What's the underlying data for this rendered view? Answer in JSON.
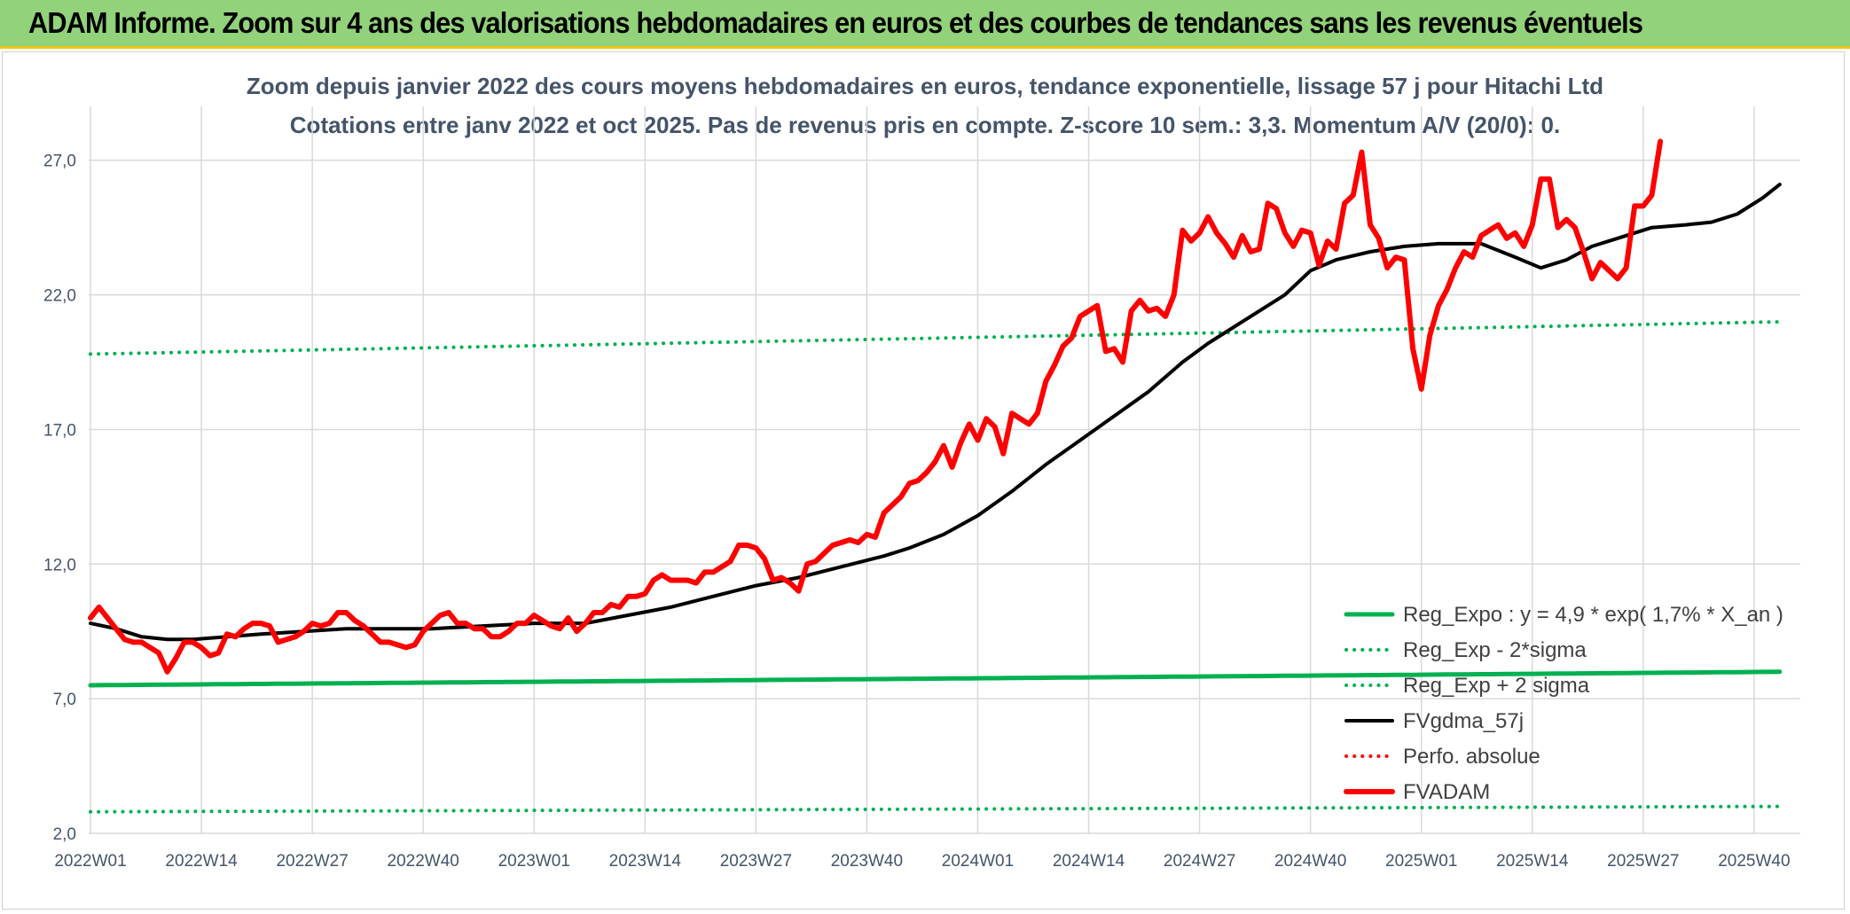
{
  "banner": {
    "title": "ADAM Informe. Zoom sur 4 ans des valorisations hebdomadaires en euros et des courbes de tendances sans les revenus éventuels"
  },
  "chart_data": {
    "type": "line",
    "title": "Zoom depuis janvier 2022 des cours moyens hebdomadaires en euros, tendance exponentielle, lissage 57 j pour Hitachi Ltd",
    "subtitle": "Cotations entre janv 2022 et oct 2025. Pas de revenus pris en compte. Z-score 10 sem.: 3,3. Momentum A/V (20/0): 0.",
    "xlabel": "",
    "ylabel": "",
    "ylim": [
      2.0,
      29.0
    ],
    "yticks": [
      "2,0",
      "7,0",
      "12,0",
      "17,0",
      "22,0",
      "27,0"
    ],
    "ytick_values": [
      2,
      7,
      12,
      17,
      22,
      27
    ],
    "xticks": [
      "2022W01",
      "2022W14",
      "2022W27",
      "2022W40",
      "2023W01",
      "2023W14",
      "2023W27",
      "2023W40",
      "2024W01",
      "2024W14",
      "2024W27",
      "2024W40",
      "2025W01",
      "2025W14",
      "2025W27",
      "2025W40"
    ],
    "xtick_index": [
      0,
      13,
      26,
      39,
      52,
      65,
      78,
      91,
      104,
      117,
      130,
      143,
      156,
      169,
      182,
      195
    ],
    "grid": true,
    "legend_position": "bottom-right",
    "series": [
      {
        "name": "Reg_Expo : y = 4,9 * exp( 1,7% *  X_an )",
        "color": "#00b050",
        "style": "solid",
        "width": 5,
        "start": 7.5,
        "end": 8.0
      },
      {
        "name": "Reg_Exp - 2*sigma",
        "color": "#00b050",
        "style": "dotted",
        "width": 4,
        "start": 2.8,
        "end": 3.0
      },
      {
        "name": "Reg_Exp + 2 sigma",
        "color": "#00b050",
        "style": "dotted",
        "width": 4,
        "start": 19.8,
        "end": 21.0
      },
      {
        "name": "FVgdma_57j",
        "color": "#000000",
        "style": "solid",
        "width": 4,
        "points": [
          [
            0,
            9.8
          ],
          [
            3,
            9.6
          ],
          [
            6,
            9.3
          ],
          [
            9,
            9.2
          ],
          [
            12,
            9.2
          ],
          [
            16,
            9.3
          ],
          [
            20,
            9.4
          ],
          [
            25,
            9.5
          ],
          [
            30,
            9.6
          ],
          [
            36,
            9.6
          ],
          [
            40,
            9.6
          ],
          [
            46,
            9.7
          ],
          [
            52,
            9.8
          ],
          [
            58,
            9.8
          ],
          [
            63,
            10.1
          ],
          [
            68,
            10.4
          ],
          [
            73,
            10.8
          ],
          [
            78,
            11.2
          ],
          [
            83,
            11.5
          ],
          [
            88,
            11.9
          ],
          [
            93,
            12.3
          ],
          [
            96,
            12.6
          ],
          [
            100,
            13.1
          ],
          [
            104,
            13.8
          ],
          [
            108,
            14.7
          ],
          [
            112,
            15.7
          ],
          [
            116,
            16.6
          ],
          [
            120,
            17.5
          ],
          [
            124,
            18.4
          ],
          [
            128,
            19.5
          ],
          [
            131,
            20.2
          ],
          [
            134,
            20.8
          ],
          [
            137,
            21.4
          ],
          [
            140,
            22.0
          ],
          [
            143,
            22.9
          ],
          [
            146,
            23.3
          ],
          [
            150,
            23.6
          ],
          [
            154,
            23.8
          ],
          [
            158,
            23.9
          ],
          [
            163,
            23.9
          ],
          [
            167,
            23.4
          ],
          [
            170,
            23.0
          ],
          [
            173,
            23.3
          ],
          [
            176,
            23.8
          ],
          [
            179,
            24.1
          ],
          [
            183,
            24.5
          ],
          [
            187,
            24.6
          ],
          [
            190,
            24.7
          ],
          [
            193,
            25.0
          ],
          [
            196,
            25.6
          ],
          [
            198,
            26.1
          ]
        ]
      },
      {
        "name": "Perfo. absolue",
        "color": "#ff0000",
        "style": "dotted",
        "width": 4,
        "points": []
      },
      {
        "name": "FVADAM",
        "color": "#ff0000",
        "style": "solid",
        "width": 6,
        "points": [
          [
            0,
            10.0
          ],
          [
            1,
            10.4
          ],
          [
            2,
            10.0
          ],
          [
            3,
            9.6
          ],
          [
            4,
            9.2
          ],
          [
            5,
            9.1
          ],
          [
            6,
            9.1
          ],
          [
            7,
            8.9
          ],
          [
            8,
            8.7
          ],
          [
            9,
            8.0
          ],
          [
            10,
            8.5
          ],
          [
            11,
            9.1
          ],
          [
            12,
            9.1
          ],
          [
            13,
            8.9
          ],
          [
            14,
            8.6
          ],
          [
            15,
            8.7
          ],
          [
            16,
            9.4
          ],
          [
            17,
            9.3
          ],
          [
            18,
            9.6
          ],
          [
            19,
            9.8
          ],
          [
            20,
            9.8
          ],
          [
            21,
            9.7
          ],
          [
            22,
            9.1
          ],
          [
            23,
            9.2
          ],
          [
            24,
            9.3
          ],
          [
            25,
            9.5
          ],
          [
            26,
            9.8
          ],
          [
            27,
            9.7
          ],
          [
            28,
            9.8
          ],
          [
            29,
            10.2
          ],
          [
            30,
            10.2
          ],
          [
            31,
            9.9
          ],
          [
            32,
            9.7
          ],
          [
            33,
            9.4
          ],
          [
            34,
            9.1
          ],
          [
            35,
            9.1
          ],
          [
            36,
            9.0
          ],
          [
            37,
            8.9
          ],
          [
            38,
            9.0
          ],
          [
            39,
            9.5
          ],
          [
            40,
            9.8
          ],
          [
            41,
            10.1
          ],
          [
            42,
            10.2
          ],
          [
            43,
            9.8
          ],
          [
            44,
            9.8
          ],
          [
            45,
            9.6
          ],
          [
            46,
            9.6
          ],
          [
            47,
            9.3
          ],
          [
            48,
            9.3
          ],
          [
            49,
            9.5
          ],
          [
            50,
            9.8
          ],
          [
            51,
            9.8
          ],
          [
            52,
            10.1
          ],
          [
            53,
            9.9
          ],
          [
            54,
            9.7
          ],
          [
            55,
            9.6
          ],
          [
            56,
            10.0
          ],
          [
            57,
            9.5
          ],
          [
            58,
            9.8
          ],
          [
            59,
            10.2
          ],
          [
            60,
            10.2
          ],
          [
            61,
            10.5
          ],
          [
            62,
            10.4
          ],
          [
            63,
            10.8
          ],
          [
            64,
            10.8
          ],
          [
            65,
            10.9
          ],
          [
            66,
            11.4
          ],
          [
            67,
            11.6
          ],
          [
            68,
            11.4
          ],
          [
            69,
            11.4
          ],
          [
            70,
            11.4
          ],
          [
            71,
            11.3
          ],
          [
            72,
            11.7
          ],
          [
            73,
            11.7
          ],
          [
            74,
            11.9
          ],
          [
            75,
            12.1
          ],
          [
            76,
            12.7
          ],
          [
            77,
            12.7
          ],
          [
            78,
            12.6
          ],
          [
            79,
            12.2
          ],
          [
            80,
            11.4
          ],
          [
            81,
            11.5
          ],
          [
            82,
            11.3
          ],
          [
            83,
            11.0
          ],
          [
            84,
            12.0
          ],
          [
            85,
            12.1
          ],
          [
            86,
            12.4
          ],
          [
            87,
            12.7
          ],
          [
            88,
            12.8
          ],
          [
            89,
            12.9
          ],
          [
            90,
            12.8
          ],
          [
            91,
            13.1
          ],
          [
            92,
            13.0
          ],
          [
            93,
            13.9
          ],
          [
            94,
            14.2
          ],
          [
            95,
            14.5
          ],
          [
            96,
            15.0
          ],
          [
            97,
            15.1
          ],
          [
            98,
            15.4
          ],
          [
            99,
            15.8
          ],
          [
            100,
            16.4
          ],
          [
            101,
            15.6
          ],
          [
            102,
            16.5
          ],
          [
            103,
            17.2
          ],
          [
            104,
            16.6
          ],
          [
            105,
            17.4
          ],
          [
            106,
            17.1
          ],
          [
            107,
            16.1
          ],
          [
            108,
            17.6
          ],
          [
            109,
            17.4
          ],
          [
            110,
            17.2
          ],
          [
            111,
            17.6
          ],
          [
            112,
            18.8
          ],
          [
            113,
            19.4
          ],
          [
            114,
            20.1
          ],
          [
            115,
            20.4
          ],
          [
            116,
            21.2
          ],
          [
            117,
            21.4
          ],
          [
            118,
            21.6
          ],
          [
            119,
            19.9
          ],
          [
            120,
            20.0
          ],
          [
            121,
            19.5
          ],
          [
            122,
            21.4
          ],
          [
            123,
            21.8
          ],
          [
            124,
            21.4
          ],
          [
            125,
            21.5
          ],
          [
            126,
            21.2
          ],
          [
            127,
            22.0
          ],
          [
            128,
            24.4
          ],
          [
            129,
            24.0
          ],
          [
            130,
            24.3
          ],
          [
            131,
            24.9
          ],
          [
            132,
            24.3
          ],
          [
            133,
            23.9
          ],
          [
            134,
            23.4
          ],
          [
            135,
            24.2
          ],
          [
            136,
            23.6
          ],
          [
            137,
            23.7
          ],
          [
            138,
            25.4
          ],
          [
            139,
            25.2
          ],
          [
            140,
            24.3
          ],
          [
            141,
            23.8
          ],
          [
            142,
            24.4
          ],
          [
            143,
            24.3
          ],
          [
            144,
            23.1
          ],
          [
            145,
            24.0
          ],
          [
            146,
            23.7
          ],
          [
            147,
            25.4
          ],
          [
            148,
            25.7
          ],
          [
            149,
            27.3
          ],
          [
            150,
            24.6
          ],
          [
            151,
            24.1
          ],
          [
            152,
            23.0
          ],
          [
            153,
            23.4
          ],
          [
            154,
            23.3
          ],
          [
            155,
            20.0
          ],
          [
            156,
            18.5
          ],
          [
            157,
            20.5
          ],
          [
            158,
            21.6
          ],
          [
            159,
            22.2
          ],
          [
            160,
            23.0
          ],
          [
            161,
            23.6
          ],
          [
            162,
            23.4
          ],
          [
            163,
            24.2
          ],
          [
            164,
            24.4
          ],
          [
            165,
            24.6
          ],
          [
            166,
            24.1
          ],
          [
            167,
            24.3
          ],
          [
            168,
            23.8
          ],
          [
            169,
            24.6
          ],
          [
            170,
            26.3
          ],
          [
            171,
            26.3
          ],
          [
            172,
            24.5
          ],
          [
            173,
            24.8
          ],
          [
            174,
            24.5
          ],
          [
            175,
            23.6
          ],
          [
            176,
            22.6
          ],
          [
            177,
            23.2
          ],
          [
            178,
            22.9
          ],
          [
            179,
            22.6
          ],
          [
            180,
            23.0
          ],
          [
            181,
            25.3
          ],
          [
            182,
            25.3
          ],
          [
            183,
            25.7
          ],
          [
            184,
            27.7
          ]
        ]
      }
    ]
  }
}
